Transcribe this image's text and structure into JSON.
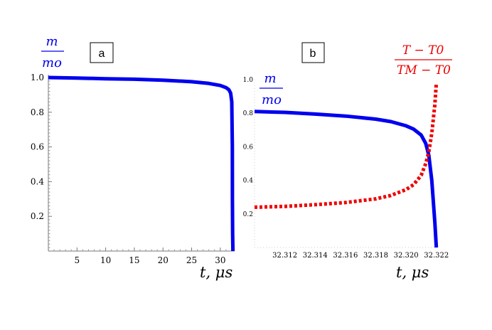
{
  "chart_data": [
    {
      "panel_label": "a",
      "type": "line",
      "ylabel_num": "m",
      "ylabel_den": "mo",
      "xlabel": "t,  μs",
      "xlim": [
        0,
        32.5
      ],
      "ylim": [
        0,
        1.0
      ],
      "x_ticks": [
        5,
        10,
        15,
        20,
        25,
        30
      ],
      "y_ticks": [
        0.2,
        0.4,
        0.6,
        0.8,
        1.0
      ],
      "x_tick_labels": [
        "5",
        "10",
        "15",
        "20",
        "25",
        "30"
      ],
      "y_tick_labels": [
        "0.2",
        "0.4",
        "0.6",
        "0.8",
        "1.0"
      ],
      "series": [
        {
          "color": "#0000ee",
          "style": "solid",
          "x": [
            0,
            5,
            10,
            15,
            20,
            25,
            28,
            30,
            31,
            31.5,
            31.8,
            32.0,
            32.1,
            32.12,
            32.15,
            32.2
          ],
          "y": [
            1.0,
            0.997,
            0.993,
            0.99,
            0.985,
            0.976,
            0.966,
            0.954,
            0.942,
            0.93,
            0.91,
            0.86,
            0.6,
            0.3,
            0.1,
            0.0
          ]
        }
      ]
    },
    {
      "panel_label": "b",
      "type": "line",
      "ylabel_num": "m",
      "ylabel_den": "mo",
      "annot_num": "T − T0",
      "annot_den": "TM − T0",
      "xlabel": "t,  μs",
      "xlim": [
        32.31,
        32.3222
      ],
      "ylim": [
        0,
        1.0
      ],
      "x_ticks": [
        32.312,
        32.314,
        32.316,
        32.318,
        32.32,
        32.322
      ],
      "y_ticks": [
        0.2,
        0.4,
        0.6,
        0.8,
        1.0
      ],
      "x_tick_labels": [
        "32.312",
        "32.314",
        "32.316",
        "32.318",
        "32.320",
        "32.322"
      ],
      "y_tick_labels": [
        "0.2",
        "0.4",
        "0.6",
        "0.8",
        "1.0"
      ],
      "series": [
        {
          "color": "#0000ee",
          "style": "solid",
          "x": [
            32.31,
            32.312,
            32.314,
            32.316,
            32.318,
            32.319,
            32.32,
            32.3205,
            32.321,
            32.3213,
            32.3215,
            32.3217,
            32.3219,
            32.322
          ],
          "y": [
            0.81,
            0.805,
            0.795,
            0.783,
            0.765,
            0.75,
            0.725,
            0.705,
            0.67,
            0.62,
            0.55,
            0.4,
            0.15,
            0.0
          ]
        },
        {
          "color": "#ee0000",
          "style": "dotted",
          "x": [
            32.31,
            32.312,
            32.314,
            32.316,
            32.318,
            32.319,
            32.32,
            32.3205,
            32.321,
            32.3213,
            32.3215,
            32.3217,
            32.3219,
            32.322
          ],
          "y": [
            0.24,
            0.245,
            0.255,
            0.268,
            0.29,
            0.31,
            0.345,
            0.375,
            0.43,
            0.5,
            0.57,
            0.68,
            0.85,
            0.98
          ]
        }
      ]
    }
  ]
}
